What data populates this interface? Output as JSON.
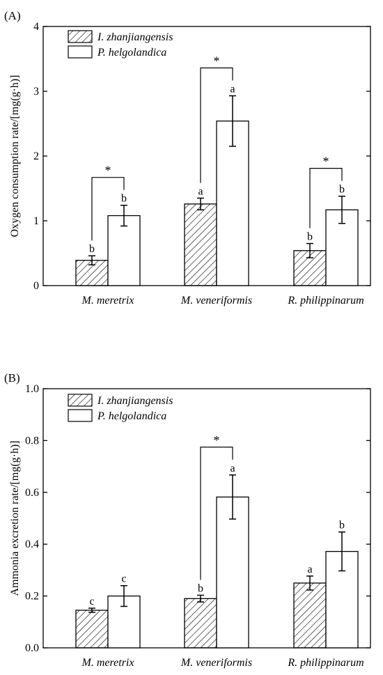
{
  "chart_data": [
    {
      "type": "bar",
      "panel_label": "(A)",
      "ylabel": "Oxygen consumption rate/[mg(g·h)]",
      "ylim": [
        0,
        4
      ],
      "yticks": [
        0,
        1,
        2,
        3,
        4
      ],
      "ytick_labels": [
        "0",
        "1",
        "2",
        "3",
        "4"
      ],
      "categories": [
        "M. meretrix",
        "M. veneriformis",
        "R. philippinarum"
      ],
      "series": [
        {
          "name": "I. zhanjiangensis",
          "pattern": "hatch",
          "values": [
            0.39,
            1.26,
            0.54
          ],
          "errors": [
            0.07,
            0.09,
            0.11
          ],
          "letters": [
            "b",
            "a",
            "b"
          ]
        },
        {
          "name": "P. helgolandica",
          "pattern": "open",
          "values": [
            1.08,
            2.54,
            1.17
          ],
          "errors": [
            0.16,
            0.39,
            0.21
          ],
          "letters": [
            "b",
            "a",
            "b"
          ]
        }
      ],
      "significance": [
        {
          "category_index": 0,
          "label": "*"
        },
        {
          "category_index": 1,
          "label": "*"
        },
        {
          "category_index": 2,
          "label": "*"
        }
      ],
      "legend_position": "top-left"
    },
    {
      "type": "bar",
      "panel_label": "(B)",
      "ylabel": "Ammonia excretion rate/[mg(g·h)]",
      "ylim": [
        0,
        1.0
      ],
      "yticks": [
        0,
        0.2,
        0.4,
        0.6,
        0.8,
        1.0
      ],
      "ytick_labels": [
        "0.0",
        "0.2",
        "0.4",
        "0.6",
        "0.8",
        "1.0"
      ],
      "categories": [
        "M. meretrix",
        "M. veneriformis",
        "R. philippinarum"
      ],
      "series": [
        {
          "name": "I. zhanjiangensis",
          "pattern": "hatch",
          "values": [
            0.145,
            0.19,
            0.25
          ],
          "errors": [
            0.008,
            0.013,
            0.027
          ],
          "letters": [
            "c",
            "b",
            "a"
          ]
        },
        {
          "name": "P. helgolandica",
          "pattern": "open",
          "values": [
            0.2,
            0.582,
            0.372
          ],
          "errors": [
            0.04,
            0.085,
            0.075
          ],
          "letters": [
            "c",
            "a",
            "b"
          ]
        }
      ],
      "significance": [
        {
          "category_index": 1,
          "label": "*"
        }
      ],
      "legend_position": "top-left"
    }
  ]
}
